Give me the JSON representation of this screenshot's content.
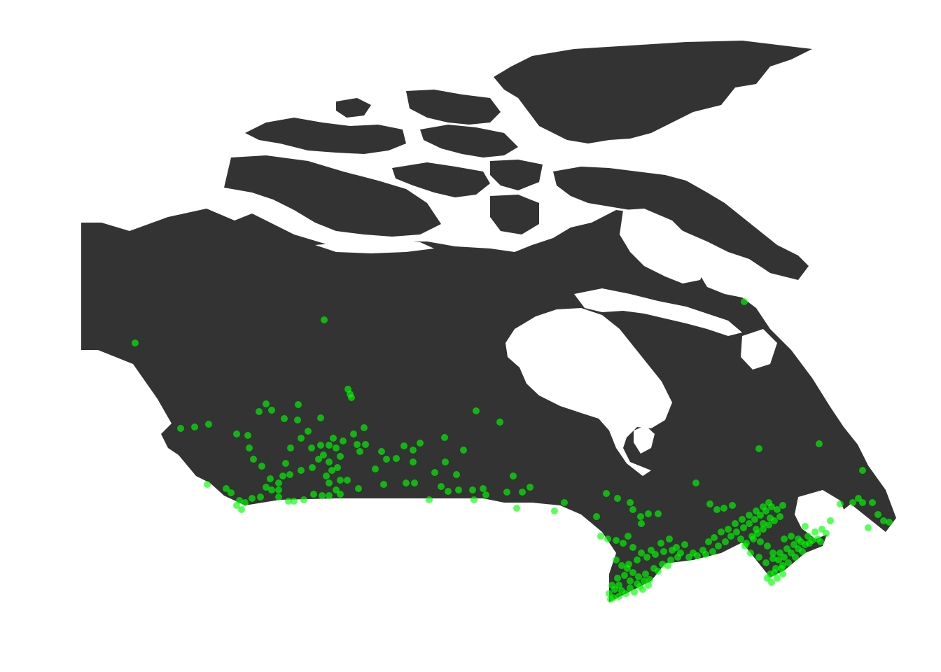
{
  "map": {
    "region": "Canada",
    "colors": {
      "background": "#ffffff",
      "land": "#333333",
      "water": "#ffffff",
      "points": "#00ff00"
    },
    "points": {
      "marker": "circle",
      "opacity": 0.65
    }
  }
}
